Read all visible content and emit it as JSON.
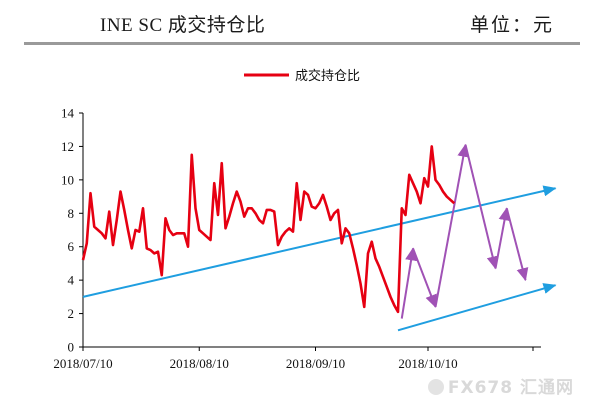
{
  "header": {
    "title": "INE SC 成交持仓比",
    "unit": "单位：元"
  },
  "watermark": {
    "text": "FX678 汇通网"
  },
  "chart_data": {
    "type": "line",
    "title": "",
    "xlabel": "",
    "ylabel": "",
    "ylim": [
      0,
      14
    ],
    "yticks": [
      0,
      2,
      4,
      6,
      8,
      10,
      12,
      14
    ],
    "grid": false,
    "legend": "top-center",
    "x_start": "2018/07/10",
    "x_end": "2018/10/29",
    "xtick_labels": [
      {
        "label": "2018/07/10",
        "index": 0
      },
      {
        "label": "2018/08/10",
        "index": 31
      },
      {
        "label": "2018/09/10",
        "index": 62
      },
      {
        "label": "2018/10/10",
        "index": 92
      }
    ],
    "series": [
      {
        "name": "成交持仓比",
        "color": "#e60012",
        "values": [
          5.2,
          6.2,
          9.2,
          7.2,
          7.0,
          6.8,
          6.5,
          8.1,
          6.1,
          7.6,
          9.3,
          8.2,
          7.0,
          5.9,
          7.0,
          6.9,
          8.3,
          5.9,
          5.8,
          5.6,
          5.7,
          4.3,
          7.7,
          7.0,
          6.7,
          6.8,
          6.8,
          6.8,
          6.0,
          11.5,
          8.3,
          7.0,
          6.8,
          6.6,
          6.4,
          9.8,
          7.9,
          11.0,
          7.1,
          7.8,
          8.6,
          9.3,
          8.7,
          7.8,
          8.3,
          8.3,
          8.0,
          7.6,
          7.4,
          8.2,
          8.2,
          8.1,
          6.1,
          6.6,
          6.9,
          7.1,
          6.9,
          9.8,
          7.6,
          9.3,
          9.1,
          8.4,
          8.3,
          8.6,
          9.1,
          8.4,
          7.6,
          8.0,
          8.2,
          6.2,
          7.1,
          6.8,
          5.9,
          4.9,
          3.8,
          2.4,
          5.6,
          6.3,
          5.3,
          4.8,
          4.2,
          3.6,
          3.0,
          2.5,
          2.1,
          8.3,
          7.9,
          10.3,
          9.8,
          9.3,
          8.6,
          10.1,
          9.6,
          12.0,
          10.0,
          9.7,
          9.3,
          9.0,
          8.8,
          8.6
        ]
      }
    ]
  },
  "annotations": {
    "trend_lines": [
      {
        "name": "upper-trend",
        "color": "#1f9ee0",
        "from": {
          "index": 0,
          "value": 3.0
        },
        "to": {
          "index": 126,
          "value": 9.5
        }
      },
      {
        "name": "lower-trend",
        "color": "#1f9ee0",
        "from": {
          "index": 84,
          "value": 1.0
        },
        "to": {
          "index": 126,
          "value": 3.7
        }
      }
    ],
    "zigzag": {
      "color": "#a052b5",
      "points": [
        {
          "index": 85,
          "value": 1.7
        },
        {
          "index": 88,
          "value": 5.9
        },
        {
          "index": 94,
          "value": 2.4
        },
        {
          "index": 102,
          "value": 12.1
        },
        {
          "index": 110,
          "value": 4.7
        },
        {
          "index": 113,
          "value": 8.3
        },
        {
          "index": 118,
          "value": 4.0
        }
      ]
    }
  }
}
